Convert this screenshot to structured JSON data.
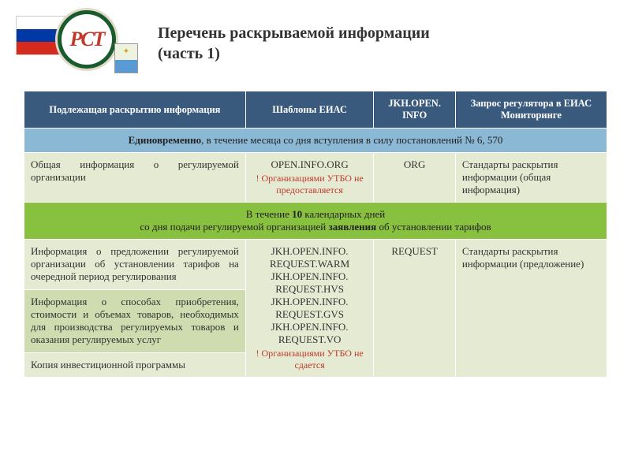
{
  "header": {
    "logo_text": "РСТ",
    "title_line1": "Перечень раскрываемой информации",
    "title_line2": "(часть 1)"
  },
  "table": {
    "columns": [
      "Подлежащая раскрытию информация",
      "Шаблоны ЕИАС",
      "JKH.OPEN. INFO",
      "Запрос регулятора в ЕИАС Мониторинге"
    ],
    "section1": {
      "prefix_bold": "Единовременно",
      "rest": ", в течение месяца со дня вступления в силу постановлений № 6, 570"
    },
    "row1": {
      "info": "Общая информация о регулируемой организации",
      "template": "OPEN.INFO.ORG",
      "template_note": "! Организациями УТБО не предоставляется",
      "jkh": "ORG",
      "request": "Стандарты раскрытия информации (общая информация)"
    },
    "section2": {
      "line1_a": "В течение ",
      "line1_b": "10",
      "line1_c": " календарных дней",
      "line2_a": "со дня подачи регулируемой организацией ",
      "line2_b": "заявления",
      "line2_c": " об установлении тарифов"
    },
    "row2": {
      "info": "Информация о предложении регулируемой организации об установлении тарифов на очередной период регулирования",
      "templates": [
        "JKH.OPEN.INFO. REQUEST.WARM",
        "JKH.OPEN.INFO. REQUEST.HVS",
        "JKH.OPEN.INFO. REQUEST.GVS",
        "JKH.OPEN.INFO. REQUEST.VO"
      ],
      "template_note": "! Организациями УТБО не сдается",
      "jkh": "REQUEST",
      "request": "Стандарты раскрытия информации (предложение)"
    },
    "row3": {
      "info": "Информация о способах приобретения, стоимости и объемах товаров, необходимых для производства регулируемых товаров и оказания регулируемых услуг"
    },
    "row4": {
      "info": "Копия инвестиционной программы"
    }
  },
  "colors": {
    "header_bg": "#3a5a7d",
    "section_blue": "#8bb8d4",
    "section_green": "#88c040",
    "row_light": "#e4ebd2",
    "row_dark": "#cfdcaf",
    "note_red": "#c0392b",
    "logo_green": "#1a5b2e"
  }
}
